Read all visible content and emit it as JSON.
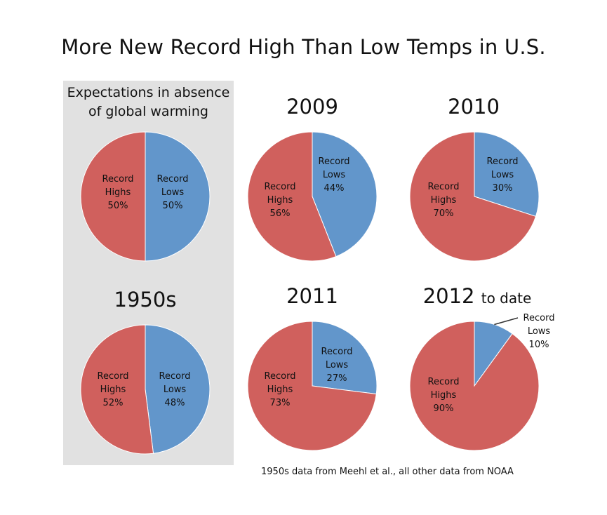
{
  "title": "More New Record High Than Low Temps in U.S.",
  "source_note": "1950s data from Meehl et al., all other data from NOAA",
  "colors": {
    "highs": "#d0605d",
    "lows": "#6296cb",
    "panel": "#e1e1e1"
  },
  "panel_title": "Expectations in absence of global warming",
  "chart_data": [
    {
      "type": "pie",
      "title": "Expectations in absence of global warming",
      "categories": [
        "Record Lows",
        "Record Highs"
      ],
      "values": [
        50,
        50
      ],
      "labels": [
        [
          "Record",
          "Lows",
          "50%"
        ],
        [
          "Record",
          "Highs",
          "50%"
        ]
      ]
    },
    {
      "type": "pie",
      "title": "2009",
      "categories": [
        "Record Lows",
        "Record Highs"
      ],
      "values": [
        44,
        56
      ],
      "labels": [
        [
          "Record",
          "Lows",
          "44%"
        ],
        [
          "Record",
          "Highs",
          "56%"
        ]
      ]
    },
    {
      "type": "pie",
      "title": "2010",
      "categories": [
        "Record Lows",
        "Record Highs"
      ],
      "values": [
        30,
        70
      ],
      "labels": [
        [
          "Record",
          "Lows",
          "30%"
        ],
        [
          "Record",
          "Highs",
          "70%"
        ]
      ]
    },
    {
      "type": "pie",
      "title": "1950s",
      "categories": [
        "Record Lows",
        "Record Highs"
      ],
      "values": [
        48,
        52
      ],
      "labels": [
        [
          "Record",
          "Lows",
          "48%"
        ],
        [
          "Record",
          "Highs",
          "52%"
        ]
      ]
    },
    {
      "type": "pie",
      "title": "2011",
      "categories": [
        "Record Lows",
        "Record Highs"
      ],
      "values": [
        27,
        73
      ],
      "labels": [
        [
          "Record",
          "Lows",
          "27%"
        ],
        [
          "Record",
          "Highs",
          "73%"
        ]
      ]
    },
    {
      "type": "pie",
      "title": "2012",
      "title_suffix": "to date",
      "categories": [
        "Record Lows",
        "Record Highs"
      ],
      "values": [
        10,
        90
      ],
      "labels": [
        [
          "Record",
          "Lows",
          "10%"
        ],
        [
          "Record",
          "Highs",
          "90%"
        ]
      ]
    }
  ]
}
